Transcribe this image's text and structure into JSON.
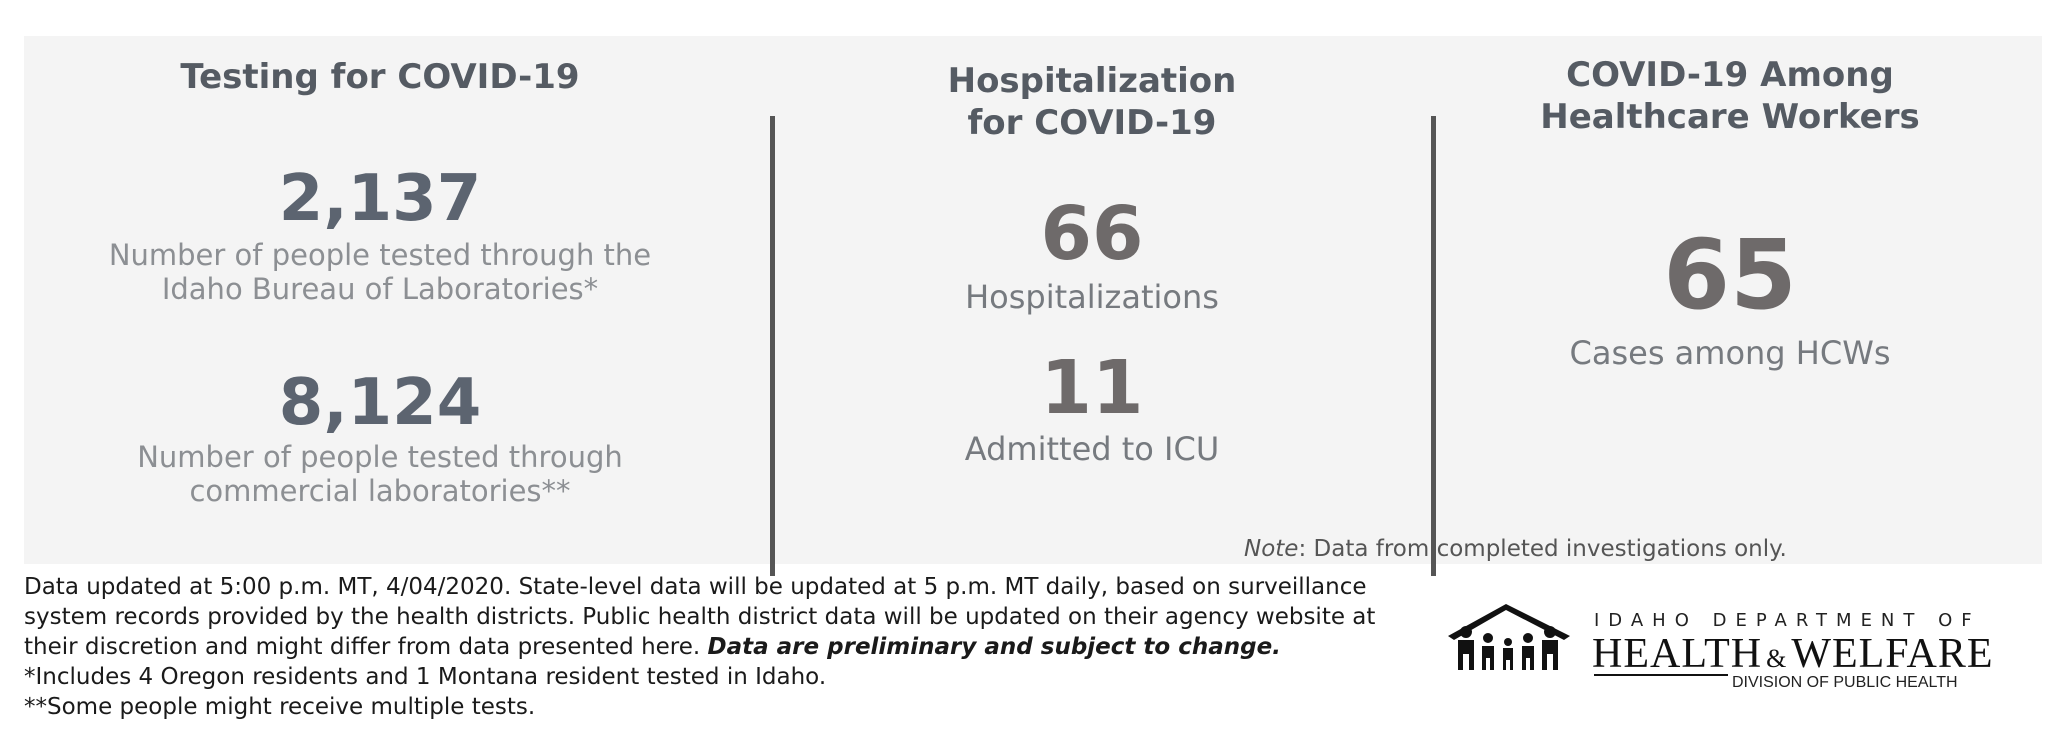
{
  "testing": {
    "title": "Testing for COVID-19",
    "ibl_count": "2,137",
    "ibl_desc_line1": "Number of people tested through the",
    "ibl_desc_line2": "Idaho Bureau of Laboratories*",
    "commercial_count": "8,124",
    "commercial_desc_line1": "Number of people tested through",
    "commercial_desc_line2": "commercial laboratories**"
  },
  "hospitalization": {
    "title_line1": "Hospitalization",
    "title_line2": "for COVID-19",
    "hosp_count": "66",
    "hosp_label": "Hospitalizations",
    "icu_count": "11",
    "icu_label": "Admitted to ICU"
  },
  "healthcare": {
    "title_line1": "COVID-19 Among",
    "title_line2": "Healthcare Workers",
    "cases_count": "65",
    "cases_label": "Cases among HCWs"
  },
  "note": {
    "prefix": "Note",
    "text": ": Data from completed investigations only."
  },
  "footer": {
    "line1": "Data updated at 5:00 p.m. MT, 4/04/2020. State-level data will be updated at 5 p.m. MT daily, based on surveillance",
    "line2": "system records provided by the health districts. Public health district data will be updated on their agency website at",
    "line3_plain": "their discretion and might differ from data presented here. ",
    "line3_emph": "Data are preliminary and subject to change.",
    "line4": "*Includes 4 Oregon residents and 1 Montana resident tested in Idaho.",
    "line5": "**Some people might receive multiple tests."
  },
  "logo": {
    "dept": "IDAHO DEPARTMENT OF",
    "name_a": "HEALTH",
    "amp": "&",
    "name_b": "WELFARE",
    "division": "DIVISION OF PUBLIC HEALTH",
    "icon": "family-house-icon"
  },
  "colors": {
    "panel_bg": "#f4f4f4",
    "number_blue_gray": "#5c6470",
    "number_warm_gray": "#6e6a6a",
    "divider": "#555555"
  }
}
